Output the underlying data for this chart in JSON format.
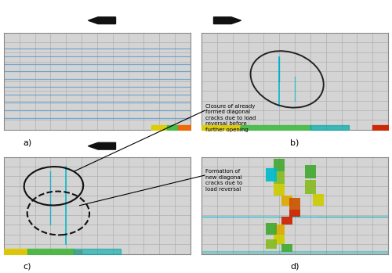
{
  "panel_bg": "#d8d8d8",
  "grid_color": "#aaaaaa",
  "grid_rows": 10,
  "grid_cols": 12,
  "labels": [
    "a)",
    "b)",
    "c)",
    "d)"
  ],
  "annotation_text_1": "Closure of already\nformed diagonal\ncracks due to load\nreversal before\nfurther opening",
  "annotation_text_2": "Formation of\nnew diagonal\ncracks due to\nload reversal",
  "blue_y_a": [
    1.2,
    2.0,
    2.8,
    3.6,
    4.4,
    5.2,
    6.0,
    6.8,
    7.6,
    8.4
  ],
  "arrow_color": "#111111"
}
